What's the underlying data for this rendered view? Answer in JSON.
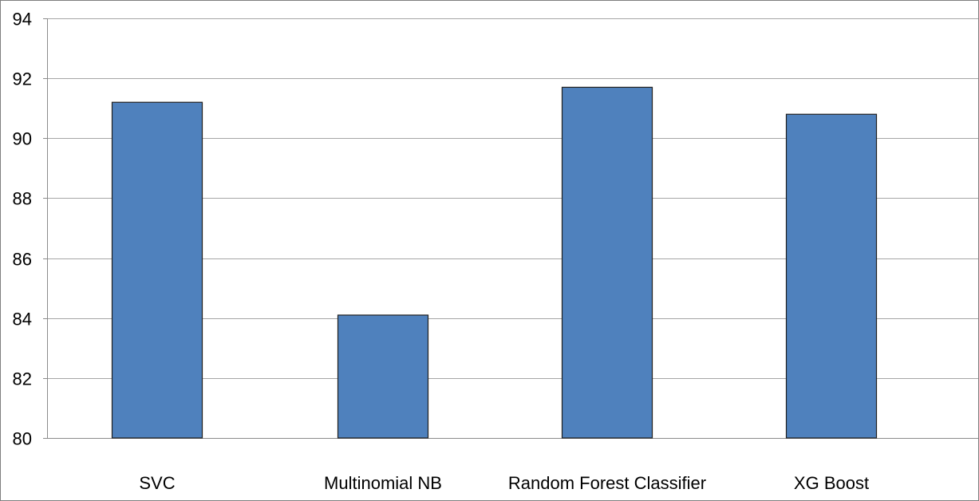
{
  "chart_data": {
    "type": "bar",
    "categories": [
      "SVC",
      "Multinomial NB",
      "Random Forest Classifier",
      "XG Boost"
    ],
    "values": [
      91.2,
      84.1,
      91.7,
      90.8
    ],
    "ylim": [
      80,
      94
    ],
    "yticks": [
      80,
      82,
      84,
      86,
      88,
      90,
      92,
      94
    ],
    "grid": true,
    "legend": "none",
    "bar_color": "#4F81BD",
    "bar_edge_color": "#1F1F1F",
    "grid_color": "#A6A6A6"
  }
}
